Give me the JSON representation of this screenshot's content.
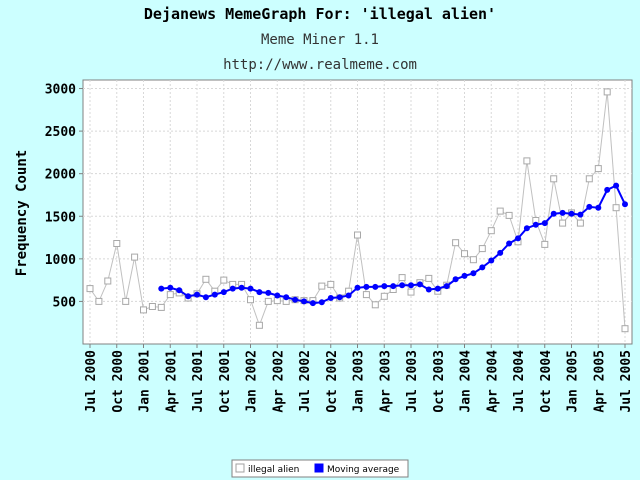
{
  "chart_data": {
    "type": "line",
    "title": "Dejanews MemeGraph For: 'illegal alien'",
    "subtitle": "Meme Miner 1.1",
    "subtitle2": "http://www.realmeme.com",
    "ylabel": "Frequency Count",
    "xlabel": "",
    "ylim": [
      0,
      3100
    ],
    "y_ticks": [
      500,
      1000,
      1500,
      2000,
      2500,
      3000
    ],
    "x_start": "Jul 2000",
    "x_ticks": [
      "Jul 2000",
      "Oct 2000",
      "Jan 2001",
      "Apr 2001",
      "Jul 2001",
      "Oct 2001",
      "Jan 2002",
      "Apr 2002",
      "Jul 2002",
      "Oct 2002",
      "Jan 2003",
      "Apr 2003",
      "Jul 2003",
      "Oct 2003",
      "Jan 2004",
      "Apr 2004",
      "Jul 2004",
      "Oct 2004",
      "Jan 2005",
      "Apr 2005",
      "Jul 2005"
    ],
    "grid": true,
    "legend_position": "bottom",
    "colors": {
      "background": "#ccffff",
      "raw_series": "#c0c0c0",
      "moving_average": "#0000ff"
    },
    "series": [
      {
        "name": "illegal alien",
        "marker": "square",
        "values": [
          650,
          500,
          740,
          1180,
          500,
          1020,
          400,
          440,
          430,
          580,
          600,
          540,
          590,
          760,
          620,
          750,
          700,
          700,
          520,
          220,
          500,
          510,
          500,
          520,
          510,
          510,
          680,
          700,
          540,
          620,
          1280,
          580,
          460,
          560,
          640,
          780,
          610,
          720,
          770,
          620,
          690,
          1190,
          1060,
          990,
          1120,
          1330,
          1560,
          1510,
          1200,
          2150,
          1450,
          1170,
          1940,
          1420,
          1540,
          1420,
          1940,
          2060,
          2960,
          1600,
          180
        ]
      },
      {
        "name": "Moving average",
        "marker": "circle",
        "values": [
          null,
          null,
          null,
          null,
          null,
          null,
          null,
          null,
          650,
          660,
          630,
          560,
          580,
          550,
          580,
          610,
          650,
          660,
          650,
          610,
          600,
          570,
          550,
          520,
          500,
          480,
          490,
          540,
          550,
          570,
          660,
          670,
          670,
          680,
          680,
          690,
          690,
          700,
          640,
          650,
          680,
          760,
          800,
          830,
          900,
          980,
          1070,
          1180,
          1240,
          1360,
          1400,
          1420,
          1530,
          1540,
          1530,
          1520,
          1610,
          1600,
          1810,
          1860,
          1640
        ]
      }
    ]
  }
}
